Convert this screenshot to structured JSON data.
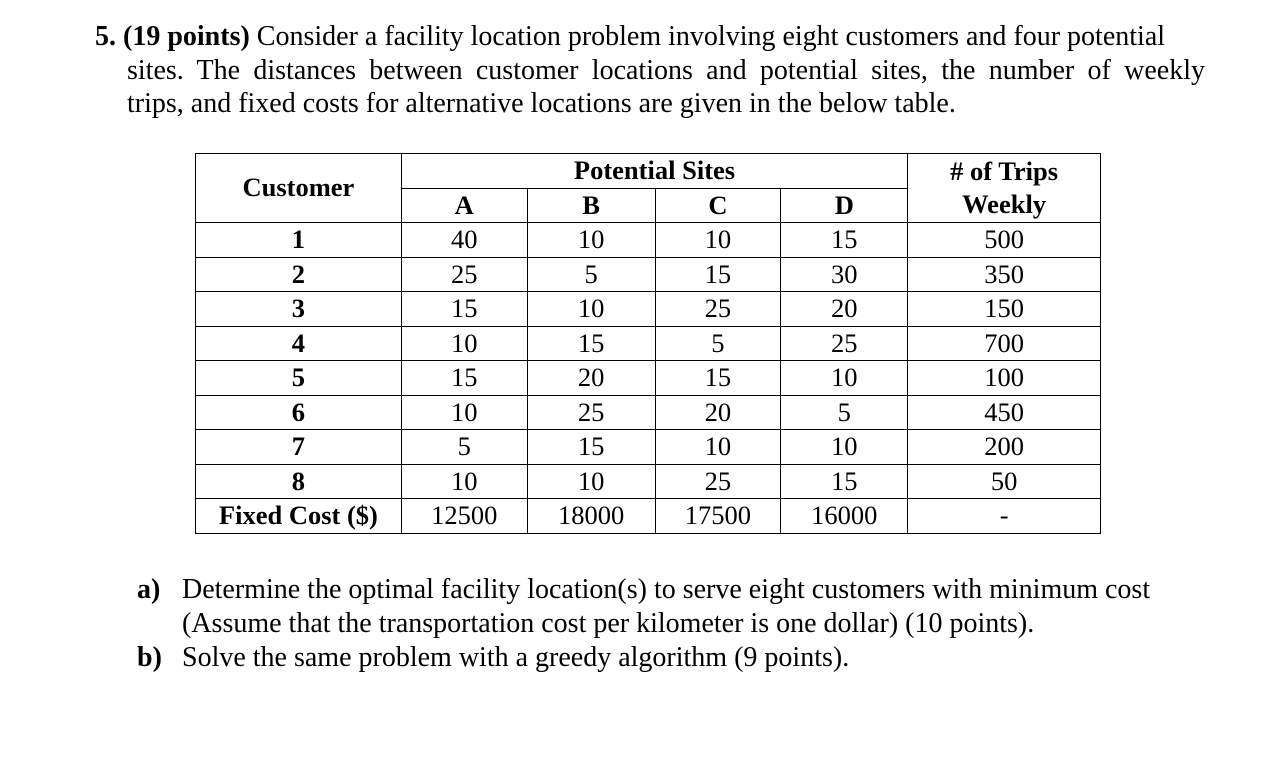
{
  "problem": {
    "number": "5.",
    "points": "(19 points)",
    "line1_rest": "Consider a facility location problem involving eight customers and four potential",
    "line2": "sites. The distances between customer locations and potential sites, the number of weekly",
    "line3": "trips, and fixed costs for alternative locations are given in the below table."
  },
  "table": {
    "customer_header": "Customer",
    "sites_header": "Potential Sites",
    "trips_header_line1": "# of Trips",
    "trips_header_line2": "Weekly",
    "site_labels": [
      "A",
      "B",
      "C",
      "D"
    ],
    "rows": [
      {
        "customer": "1",
        "a": "40",
        "b": "10",
        "c": "10",
        "d": "15",
        "trips": "500"
      },
      {
        "customer": "2",
        "a": "25",
        "b": "5",
        "c": "15",
        "d": "30",
        "trips": "350"
      },
      {
        "customer": "3",
        "a": "15",
        "b": "10",
        "c": "25",
        "d": "20",
        "trips": "150"
      },
      {
        "customer": "4",
        "a": "10",
        "b": "15",
        "c": "5",
        "d": "25",
        "trips": "700"
      },
      {
        "customer": "5",
        "a": "15",
        "b": "20",
        "c": "15",
        "d": "10",
        "trips": "100"
      },
      {
        "customer": "6",
        "a": "10",
        "b": "25",
        "c": "20",
        "d": "5",
        "trips": "450"
      },
      {
        "customer": "7",
        "a": "5",
        "b": "15",
        "c": "10",
        "d": "10",
        "trips": "200"
      },
      {
        "customer": "8",
        "a": "10",
        "b": "10",
        "c": "25",
        "d": "15",
        "trips": "50"
      }
    ],
    "fixed_cost": {
      "label": "Fixed Cost ($)",
      "a": "12500",
      "b": "18000",
      "c": "17500",
      "d": "16000",
      "trips": "-"
    }
  },
  "questions": [
    {
      "label": "a)",
      "line1": "Determine the optimal facility location(s) to serve eight customers with minimum cost",
      "line2": "(Assume that the transportation cost per kilometer is one dollar) (10 points)."
    },
    {
      "label": "b)",
      "line1": "Solve the same problem with a greedy algorithm (9 points).",
      "line2": ""
    }
  ]
}
